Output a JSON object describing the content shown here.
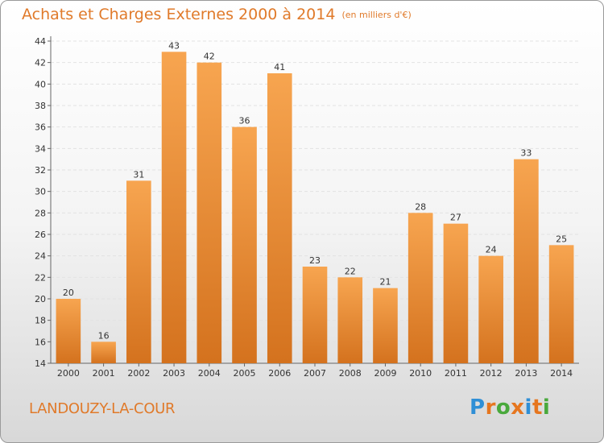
{
  "header": {
    "title": "Achats et Charges Externes 2000 à 2014",
    "subtitle": "(en milliers d'€)"
  },
  "footer": {
    "commune": "LANDOUZY-LA-COUR",
    "logo_text": "Proxiti",
    "logo_colors": [
      "#2f8fd6",
      "#e6761f",
      "#49a93c",
      "#e6761f",
      "#2f8fd6",
      "#e6761f",
      "#49a93c"
    ]
  },
  "chart_data": {
    "type": "bar",
    "categories": [
      "2000",
      "2001",
      "2002",
      "2003",
      "2004",
      "2005",
      "2006",
      "2007",
      "2008",
      "2009",
      "2010",
      "2011",
      "2012",
      "2013",
      "2014"
    ],
    "values": [
      20,
      16,
      31,
      43,
      42,
      36,
      41,
      23,
      22,
      21,
      28,
      27,
      24,
      33,
      25
    ],
    "ylim": [
      14,
      44
    ],
    "ytick_step": 2,
    "grid": true,
    "bar_color_top": "#f7a550",
    "bar_color_bottom": "#d4721e"
  }
}
